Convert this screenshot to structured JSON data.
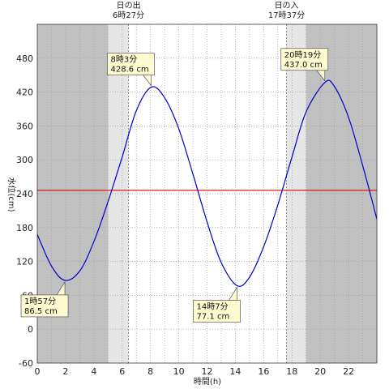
{
  "chart_data": {
    "type": "line",
    "title": "",
    "xlabel": "時間(h)",
    "ylabel": "水位(cm)",
    "xlim": [
      0,
      24
    ],
    "ylim": [
      -60,
      540
    ],
    "xticks": [
      0,
      2,
      4,
      6,
      8,
      10,
      12,
      14,
      16,
      18,
      20,
      22
    ],
    "yticks": [
      -60,
      0,
      60,
      120,
      180,
      240,
      300,
      360,
      420,
      480
    ],
    "grid": true,
    "reference_line": {
      "y": 246,
      "color": "#e00000"
    },
    "series": [
      {
        "color": "#0000cc",
        "x": [
          0,
          1,
          1.95,
          3,
          4,
          5,
          6,
          7,
          8.05,
          9,
          10,
          11,
          12,
          13,
          14.12,
          15,
          16,
          17,
          18,
          19,
          20.32,
          21,
          22,
          23,
          24
        ],
        "y": [
          168,
          112,
          86.5,
          103,
          155,
          226,
          305,
          387,
          428.6,
          410,
          355,
          275,
          190,
          118,
          77.1,
          92,
          146,
          220,
          305,
          385,
          437.0,
          430,
          375,
          290,
          195
        ]
      }
    ],
    "sun": {
      "sunrise_label": "日の出",
      "sunrise_time": "6時27分",
      "sunrise_hour": 6.45,
      "sunset_label": "日の入",
      "sunset_time": "17時37分",
      "sunset_hour": 17.617,
      "night_color": "#c0c0c0",
      "twilight_color": "#e6e6e6",
      "twilight_hours": [
        5.0,
        6.45,
        17.617,
        19.0
      ]
    },
    "annotations": [
      {
        "time": "1時57分",
        "level": "86.5 cm",
        "x": 1.95,
        "y": 86.5,
        "placement": "below-left"
      },
      {
        "time": "8時3分",
        "level": "428.6 cm",
        "x": 8.05,
        "y": 428.6,
        "placement": "above-left"
      },
      {
        "time": "14時7分",
        "level": "77.1 cm",
        "x": 14.12,
        "y": 77.1,
        "placement": "below-left"
      },
      {
        "time": "20時19分",
        "level": "437.0 cm",
        "x": 20.32,
        "y": 437.0,
        "placement": "above-left"
      }
    ]
  }
}
